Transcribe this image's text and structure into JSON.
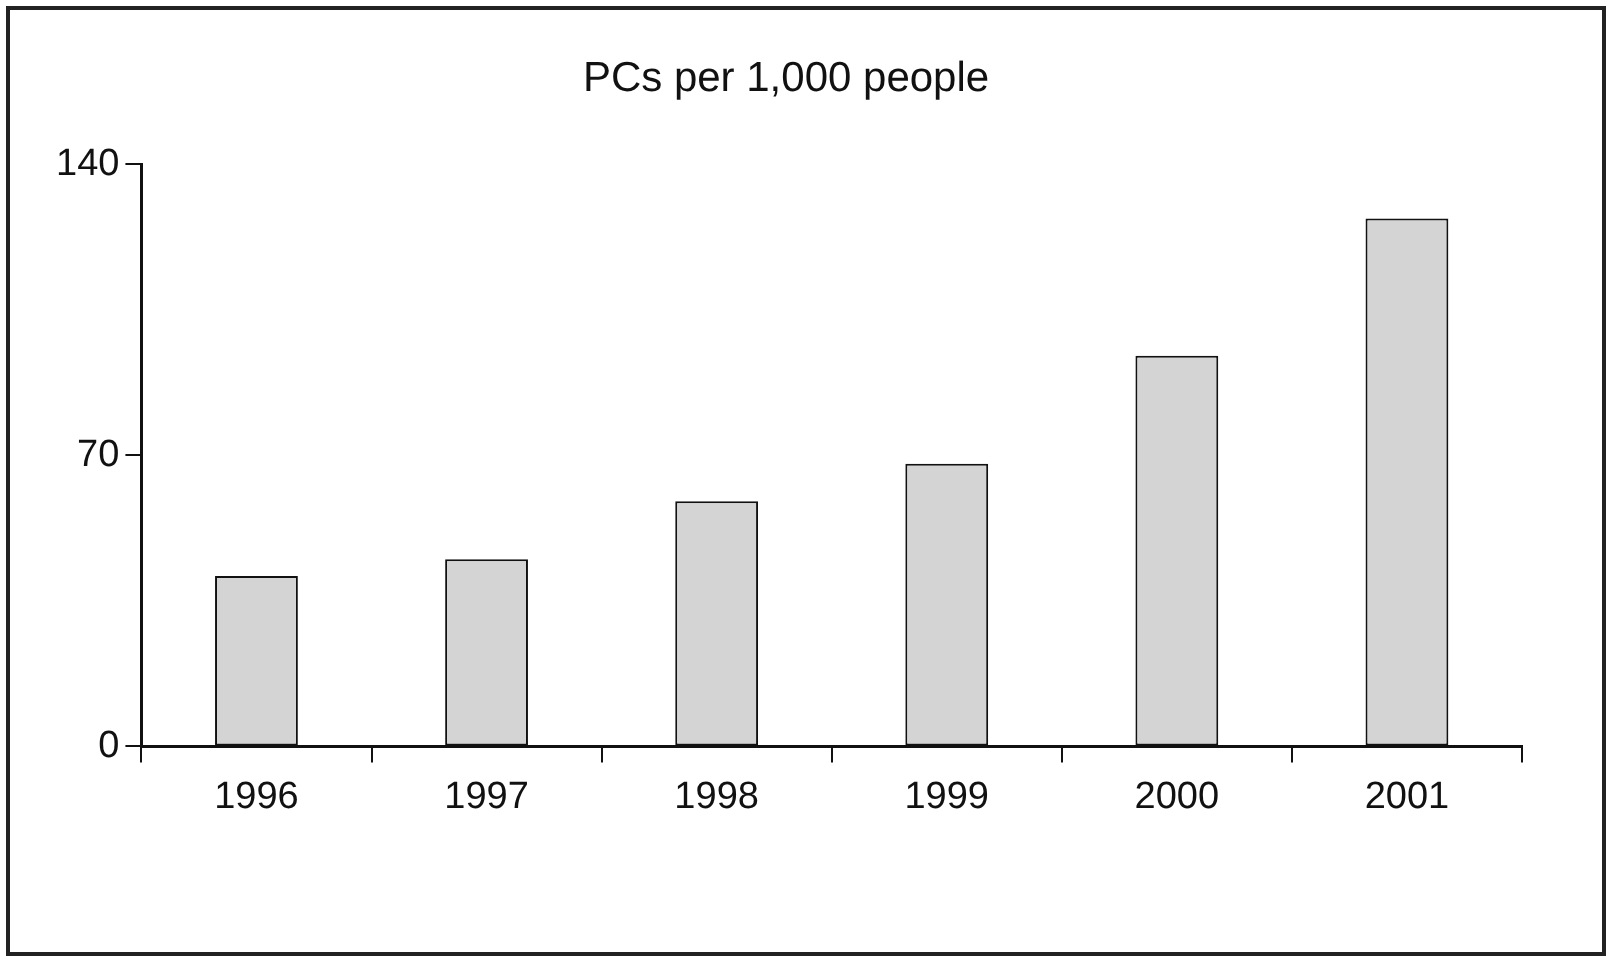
{
  "chart_data": {
    "type": "bar",
    "title": "PCs per 1,000 people",
    "categories": [
      "1996",
      "1997",
      "1998",
      "1999",
      "2000",
      "2001"
    ],
    "values": [
      41,
      45,
      59,
      68,
      94,
      127
    ],
    "color": "#d4d4d4",
    "ylim": [
      0,
      140
    ],
    "yticks": [
      0,
      70,
      140
    ],
    "grid": false,
    "legend": false
  }
}
